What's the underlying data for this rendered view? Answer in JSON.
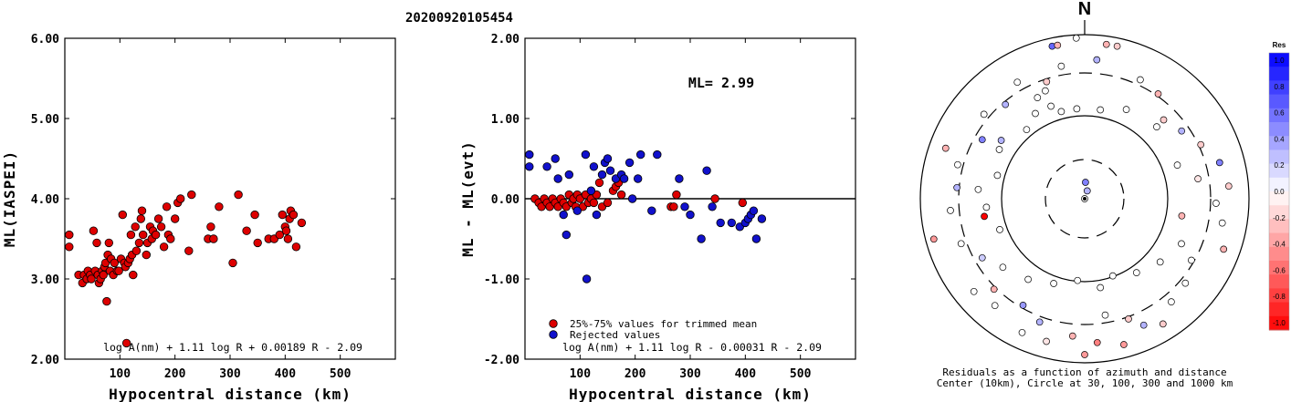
{
  "title": "20200920105454",
  "colors": {
    "accepted": "#dd0000",
    "rejected": "#1111cc",
    "stroke": "#000000"
  },
  "chart_data": [
    {
      "type": "scatter",
      "id": "ml",
      "xlabel": "Hypocentral distance (km)",
      "ylabel": "ML(IASPEI)",
      "xlim": [
        0,
        600
      ],
      "ylim": [
        2.0,
        6.0
      ],
      "xticks": [
        "100",
        "200",
        "300",
        "400",
        "500"
      ],
      "yticks": [
        "2.00",
        "3.00",
        "4.00",
        "5.00",
        "6.00"
      ],
      "formula": "log A(nm) + 1.11 log R + 0.00189 R - 2.09",
      "series": [
        {
          "color": "accepted",
          "points": [
            [
              8,
              3.55
            ],
            [
              8,
              3.4
            ],
            [
              25,
              3.05
            ],
            [
              32,
              2.95
            ],
            [
              35,
              3.05
            ],
            [
              40,
              3.0
            ],
            [
              42,
              3.1
            ],
            [
              46,
              3.05
            ],
            [
              48,
              3.0
            ],
            [
              52,
              3.6
            ],
            [
              55,
              3.1
            ],
            [
              58,
              3.45
            ],
            [
              60,
              3.05
            ],
            [
              62,
              2.95
            ],
            [
              65,
              3.0
            ],
            [
              68,
              3.1
            ],
            [
              70,
              3.05
            ],
            [
              72,
              3.15
            ],
            [
              74,
              3.2
            ],
            [
              76,
              2.72
            ],
            [
              78,
              3.3
            ],
            [
              80,
              3.45
            ],
            [
              82,
              3.1
            ],
            [
              84,
              3.25
            ],
            [
              88,
              3.05
            ],
            [
              90,
              3.2
            ],
            [
              95,
              3.1
            ],
            [
              98,
              3.1
            ],
            [
              102,
              3.25
            ],
            [
              105,
              3.8
            ],
            [
              108,
              3.2
            ],
            [
              110,
              3.15
            ],
            [
              112,
              2.2
            ],
            [
              115,
              3.2
            ],
            [
              118,
              3.25
            ],
            [
              120,
              3.55
            ],
            [
              122,
              3.3
            ],
            [
              124,
              3.05
            ],
            [
              128,
              3.65
            ],
            [
              130,
              3.35
            ],
            [
              135,
              3.45
            ],
            [
              138,
              3.75
            ],
            [
              140,
              3.85
            ],
            [
              142,
              3.55
            ],
            [
              148,
              3.3
            ],
            [
              150,
              3.45
            ],
            [
              155,
              3.65
            ],
            [
              158,
              3.5
            ],
            [
              160,
              3.6
            ],
            [
              165,
              3.55
            ],
            [
              170,
              3.75
            ],
            [
              175,
              3.65
            ],
            [
              180,
              3.4
            ],
            [
              185,
              3.9
            ],
            [
              188,
              3.55
            ],
            [
              192,
              3.5
            ],
            [
              200,
              3.75
            ],
            [
              205,
              3.95
            ],
            [
              210,
              4.0
            ],
            [
              225,
              3.35
            ],
            [
              230,
              4.05
            ],
            [
              260,
              3.5
            ],
            [
              265,
              3.65
            ],
            [
              270,
              3.5
            ],
            [
              280,
              3.9
            ],
            [
              305,
              3.2
            ],
            [
              315,
              4.05
            ],
            [
              330,
              3.6
            ],
            [
              345,
              3.8
            ],
            [
              350,
              3.45
            ],
            [
              370,
              3.5
            ],
            [
              380,
              3.5
            ],
            [
              390,
              3.55
            ],
            [
              395,
              3.8
            ],
            [
              400,
              3.65
            ],
            [
              402,
              3.6
            ],
            [
              405,
              3.5
            ],
            [
              408,
              3.75
            ],
            [
              410,
              3.85
            ],
            [
              415,
              3.8
            ],
            [
              420,
              3.4
            ],
            [
              430,
              3.7
            ]
          ]
        }
      ]
    },
    {
      "type": "scatter",
      "id": "resid",
      "xlabel": "Hypocentral distance (km)",
      "ylabel": "ML - ML(evt)",
      "xlim": [
        0,
        600
      ],
      "ylim": [
        -2.0,
        2.0
      ],
      "xticks": [
        "100",
        "200",
        "300",
        "400",
        "500"
      ],
      "yticks": [
        "-2.00",
        "-1.00",
        "0.00",
        "1.00",
        "2.00"
      ],
      "annotation": "ML= 2.99",
      "legend": [
        "25%-75% values for trimmed mean",
        "Rejected values"
      ],
      "formula": "log A(nm) + 1.11 log R - 0.00031 R - 2.09",
      "series": [
        {
          "name": "25%-75% values for trimmed mean",
          "color": "accepted",
          "points": [
            [
              18,
              0.0
            ],
            [
              25,
              -0.05
            ],
            [
              30,
              -0.1
            ],
            [
              35,
              0.0
            ],
            [
              40,
              -0.05
            ],
            [
              45,
              -0.1
            ],
            [
              50,
              0.0
            ],
            [
              55,
              -0.05
            ],
            [
              60,
              -0.1
            ],
            [
              65,
              0.0
            ],
            [
              70,
              -0.05
            ],
            [
              75,
              -0.1
            ],
            [
              80,
              0.05
            ],
            [
              85,
              -0.05
            ],
            [
              88,
              0.0
            ],
            [
              92,
              -0.1
            ],
            [
              95,
              0.05
            ],
            [
              100,
              0.0
            ],
            [
              105,
              -0.1
            ],
            [
              110,
              0.05
            ],
            [
              115,
              -0.05
            ],
            [
              120,
              0.0
            ],
            [
              125,
              -0.05
            ],
            [
              130,
              0.05
            ],
            [
              135,
              0.2
            ],
            [
              140,
              -0.1
            ],
            [
              150,
              -0.05
            ],
            [
              160,
              0.1
            ],
            [
              165,
              0.15
            ],
            [
              170,
              0.2
            ],
            [
              175,
              0.05
            ],
            [
              265,
              -0.1
            ],
            [
              270,
              -0.1
            ],
            [
              275,
              0.05
            ],
            [
              345,
              0.0
            ],
            [
              395,
              -0.05
            ]
          ]
        },
        {
          "name": "Rejected values",
          "color": "rejected",
          "points": [
            [
              8,
              0.55
            ],
            [
              8,
              0.4
            ],
            [
              40,
              0.4
            ],
            [
              55,
              0.5
            ],
            [
              60,
              0.25
            ],
            [
              70,
              -0.2
            ],
            [
              75,
              -0.45
            ],
            [
              80,
              0.3
            ],
            [
              95,
              -0.15
            ],
            [
              110,
              0.55
            ],
            [
              112,
              -1.0
            ],
            [
              120,
              0.1
            ],
            [
              125,
              0.4
            ],
            [
              130,
              -0.2
            ],
            [
              140,
              0.3
            ],
            [
              145,
              0.45
            ],
            [
              150,
              0.5
            ],
            [
              155,
              0.35
            ],
            [
              165,
              0.25
            ],
            [
              175,
              0.3
            ],
            [
              180,
              0.25
            ],
            [
              190,
              0.45
            ],
            [
              195,
              0.0
            ],
            [
              205,
              0.25
            ],
            [
              210,
              0.55
            ],
            [
              230,
              -0.15
            ],
            [
              240,
              0.55
            ],
            [
              280,
              0.25
            ],
            [
              290,
              -0.1
            ],
            [
              300,
              -0.2
            ],
            [
              320,
              -0.5
            ],
            [
              330,
              0.35
            ],
            [
              340,
              -0.1
            ],
            [
              355,
              -0.3
            ],
            [
              375,
              -0.3
            ],
            [
              390,
              -0.35
            ],
            [
              400,
              -0.3
            ],
            [
              405,
              -0.25
            ],
            [
              410,
              -0.2
            ],
            [
              415,
              -0.15
            ],
            [
              420,
              -0.5
            ],
            [
              430,
              -0.25
            ]
          ]
        }
      ]
    }
  ],
  "polar": {
    "north": "N",
    "caption1": "Residuals as a function of azimuth and distance",
    "caption2": "Center (10km), Circle at 30, 100, 300 and 1000 km",
    "colorbar_title": "Res",
    "colorbar_ticks": [
      "1.0",
      "0.8",
      "0.6",
      "0.4",
      "0.2",
      "0.0",
      "-0.2",
      "-0.4",
      "-0.6",
      "-0.8",
      "-1.0"
    ],
    "points": [
      [
        0,
        0,
        0
      ],
      [
        18,
        0.05,
        0.3
      ],
      [
        3,
        0.1,
        0.5
      ],
      [
        -30,
        0.6,
        0.0
      ],
      [
        -20,
        0.6,
        0.0
      ],
      [
        -15,
        0.55,
        0.0
      ],
      [
        -5,
        0.55,
        0.0
      ],
      [
        10,
        0.55,
        0.0
      ],
      [
        25,
        0.6,
        0.0
      ],
      [
        45,
        0.62,
        0.0
      ],
      [
        70,
        0.6,
        0.0
      ],
      [
        80,
        0.7,
        -0.1
      ],
      [
        100,
        0.6,
        -0.3
      ],
      [
        115,
        0.65,
        0.0
      ],
      [
        130,
        0.6,
        0.0
      ],
      [
        145,
        0.55,
        0.0
      ],
      [
        160,
        0.5,
        0.0
      ],
      [
        170,
        0.55,
        0.0
      ],
      [
        185,
        0.5,
        0.0
      ],
      [
        200,
        0.55,
        0.0
      ],
      [
        215,
        0.6,
        0.0
      ],
      [
        230,
        0.65,
        0.0
      ],
      [
        250,
        0.55,
        0.0
      ],
      [
        265,
        0.6,
        0.0
      ],
      [
        275,
        0.65,
        0.0
      ],
      [
        285,
        0.55,
        0.0
      ],
      [
        300,
        0.6,
        0.0
      ],
      [
        320,
        0.55,
        0.0
      ],
      [
        340,
        0.7,
        0.0
      ],
      [
        350,
        0.82,
        0.0
      ],
      [
        5,
        0.85,
        0.3
      ],
      [
        12,
        0.95,
        -0.2
      ],
      [
        25,
        0.8,
        0.0
      ],
      [
        35,
        0.78,
        -0.3
      ],
      [
        45,
        0.68,
        -0.2
      ],
      [
        55,
        0.72,
        0.3
      ],
      [
        65,
        0.78,
        -0.2
      ],
      [
        75,
        0.85,
        0.5
      ],
      [
        85,
        0.88,
        -0.2
      ],
      [
        92,
        0.8,
        0.0
      ],
      [
        100,
        0.85,
        0.0
      ],
      [
        110,
        0.9,
        -0.3
      ],
      [
        120,
        0.75,
        0.0
      ],
      [
        130,
        0.8,
        0.0
      ],
      [
        140,
        0.82,
        0.0
      ],
      [
        148,
        0.9,
        -0.2
      ],
      [
        155,
        0.85,
        0.3
      ],
      [
        160,
        0.78,
        -0.2
      ],
      [
        165,
        0.92,
        -0.4
      ],
      [
        170,
        0.72,
        0.0
      ],
      [
        175,
        0.88,
        -0.5
      ],
      [
        180,
        0.95,
        -0.4
      ],
      [
        185,
        0.84,
        -0.3
      ],
      [
        195,
        0.9,
        -0.1
      ],
      [
        200,
        0.8,
        0.3
      ],
      [
        205,
        0.9,
        0.0
      ],
      [
        210,
        0.75,
        0.4
      ],
      [
        220,
        0.85,
        0.0
      ],
      [
        225,
        0.78,
        -0.3
      ],
      [
        230,
        0.88,
        0.0
      ],
      [
        240,
        0.72,
        0.2
      ],
      [
        250,
        0.8,
        0.0
      ],
      [
        255,
        0.95,
        -0.4
      ],
      [
        260,
        0.62,
        -1.0
      ],
      [
        265,
        0.82,
        0.0
      ],
      [
        275,
        0.78,
        0.3
      ],
      [
        285,
        0.8,
        0.0
      ],
      [
        290,
        0.9,
        -0.3
      ],
      [
        300,
        0.72,
        0.5
      ],
      [
        305,
        0.62,
        0.3
      ],
      [
        310,
        0.8,
        0.0
      ],
      [
        320,
        0.75,
        0.3
      ],
      [
        330,
        0.82,
        0.0
      ],
      [
        335,
        0.68,
        0.0
      ],
      [
        342,
        0.75,
        -0.2
      ],
      [
        348,
        0.95,
        0.6
      ],
      [
        357,
        0.98,
        0.0
      ],
      [
        350,
        0.95,
        -0.3
      ],
      [
        8,
        0.95,
        -0.3
      ]
    ]
  }
}
